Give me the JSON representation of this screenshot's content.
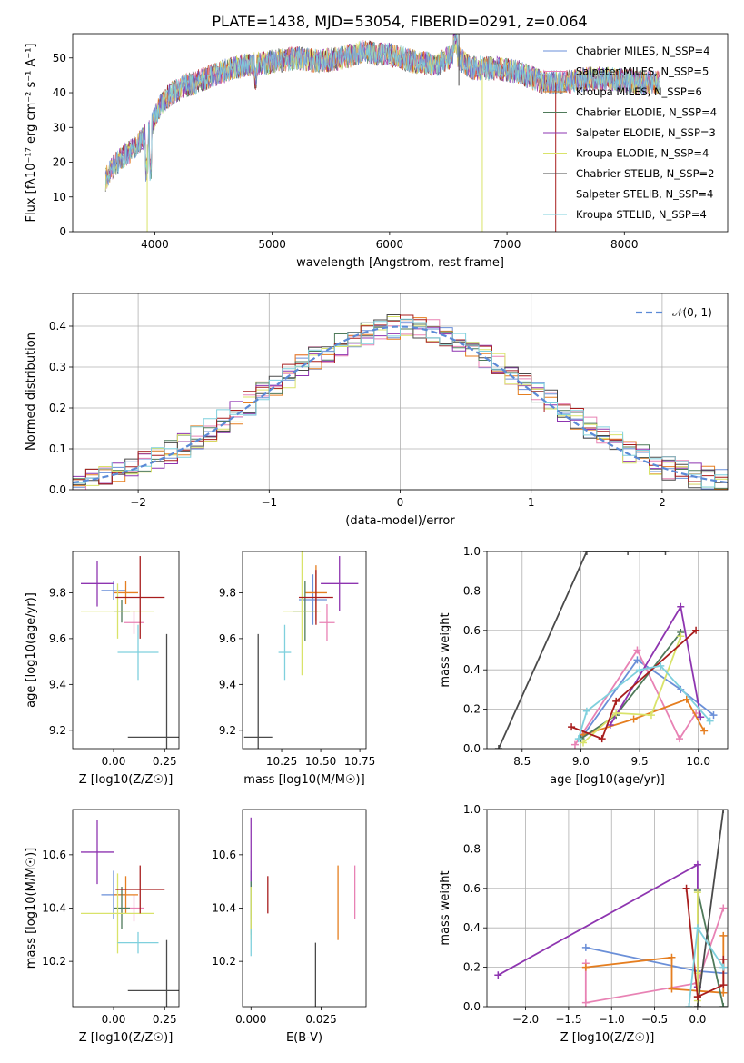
{
  "title": "PLATE=1438, MJD=53054, FIBERID=0291, z=0.064",
  "colors": [
    "#6a8fd8",
    "#e882b4",
    "#e57e20",
    "#4f7a5a",
    "#8e35b0",
    "#d9e36a",
    "#4a4a4a",
    "#a81d1d",
    "#7fd0dd"
  ],
  "chart_data": [
    {
      "type": "line",
      "panel": "spectrum",
      "title": "PLATE=1438, MJD=53054, FIBERID=0291, z=0.064",
      "xlabel": "wavelength [Angstrom, rest frame]",
      "ylabel": "Flux [fλ10⁻¹⁷ erg cm⁻² s⁻¹ A⁻¹]",
      "xlim": [
        3300,
        8880
      ],
      "ylim": [
        0,
        57
      ],
      "xticks": [
        "4000",
        "5000",
        "6000",
        "7000",
        "8000"
      ],
      "yticks": [
        "0",
        "10",
        "20",
        "30",
        "40",
        "50"
      ],
      "grid": false,
      "legend": "top-right",
      "series": [
        {
          "name": "Chabrier MILES, N_SSP=4"
        },
        {
          "name": "Salpeter MILES, N_SSP=5"
        },
        {
          "name": "Kroupa MILES, N_SSP=6"
        },
        {
          "name": "Chabrier ELODIE, N_SSP=4"
        },
        {
          "name": "Salpeter ELODIE, N_SSP=3"
        },
        {
          "name": "Kroupa ELODIE, N_SSP=4"
        },
        {
          "name": "Chabrier STELIB, N_SSP=2"
        },
        {
          "name": "Salpeter STELIB, N_SSP=4"
        },
        {
          "name": "Kroupa STELIB, N_SSP=4"
        }
      ],
      "x": [
        3580,
        3650,
        3750,
        3850,
        3950,
        4050,
        4150,
        4250,
        4350,
        4500,
        4650,
        4800,
        5000,
        5200,
        5400,
        5600,
        5800,
        5900,
        6000,
        6200,
        6400,
        6550,
        6700,
        6900,
        7100,
        7300,
        7500,
        7700,
        7900,
        8100,
        8300
      ],
      "y": [
        15,
        19,
        22,
        25,
        29,
        37,
        40,
        42,
        43,
        45,
        47,
        48,
        49,
        50,
        49,
        50,
        52,
        51,
        51,
        49,
        48,
        51,
        47,
        47,
        46,
        43,
        43,
        44,
        44,
        43,
        43
      ]
    },
    {
      "type": "line",
      "panel": "residual-histogram",
      "xlabel": "(data-model)/error",
      "ylabel": "Normed distribution",
      "xlim": [
        -2.5,
        2.5
      ],
      "ylim": [
        0,
        0.48
      ],
      "xticks": [
        "−2",
        "−1",
        "0",
        "1",
        "2"
      ],
      "yticks": [
        "0.0",
        "0.1",
        "0.2",
        "0.3",
        "0.4"
      ],
      "grid": true,
      "legend": "top-right",
      "gaussian_label": "𝒩(0, 1)",
      "bin_width": 0.1,
      "x": [
        -2.45,
        -2.35,
        -2.25,
        -2.15,
        -2.05,
        -1.95,
        -1.85,
        -1.75,
        -1.65,
        -1.55,
        -1.45,
        -1.35,
        -1.25,
        -1.15,
        -1.05,
        -0.95,
        -0.85,
        -0.75,
        -0.65,
        -0.55,
        -0.45,
        -0.35,
        -0.25,
        -0.15,
        -0.05,
        0.05,
        0.15,
        0.25,
        0.35,
        0.45,
        0.55,
        0.65,
        0.75,
        0.85,
        0.95,
        1.05,
        1.15,
        1.25,
        1.35,
        1.45,
        1.55,
        1.65,
        1.75,
        1.85,
        1.95,
        2.05,
        2.15,
        2.25,
        2.35,
        2.45
      ],
      "y": [
        0.019,
        0.025,
        0.032,
        0.041,
        0.051,
        0.064,
        0.077,
        0.092,
        0.109,
        0.127,
        0.147,
        0.168,
        0.189,
        0.212,
        0.234,
        0.256,
        0.278,
        0.3,
        0.32,
        0.339,
        0.356,
        0.371,
        0.383,
        0.392,
        0.398,
        0.398,
        0.395,
        0.387,
        0.376,
        0.362,
        0.345,
        0.325,
        0.304,
        0.282,
        0.26,
        0.237,
        0.215,
        0.192,
        0.171,
        0.15,
        0.13,
        0.112,
        0.095,
        0.08,
        0.066,
        0.054,
        0.044,
        0.035,
        0.028,
        0.022
      ]
    },
    {
      "type": "scatter",
      "panel": "age-vs-Z",
      "xlabel": "Z [log10(Z/Z☉)]",
      "ylabel": "age [log10(age/yr)]",
      "xlim": [
        -0.2,
        0.32
      ],
      "ylim": [
        9.12,
        9.98
      ],
      "xticks": [
        "0.00",
        "0.25"
      ],
      "yticks": [
        "9.2",
        "9.4",
        "9.6",
        "9.8"
      ],
      "points": [
        {
          "x": 0.0,
          "y": 9.81,
          "xerr": 0.06,
          "yerr": 0.04
        },
        {
          "x": 0.1,
          "y": 9.67,
          "xerr": 0.05,
          "yerr": 0.05
        },
        {
          "x": 0.06,
          "y": 9.8,
          "xerr": 0.06,
          "yerr": 0.05
        },
        {
          "x": 0.04,
          "y": 9.72,
          "xerr": 0.04,
          "yerr": 0.05
        },
        {
          "x": -0.08,
          "y": 9.84,
          "xerr": 0.08,
          "yerr": 0.1
        },
        {
          "x": 0.02,
          "y": 9.72,
          "xerr": 0.18,
          "yerr": 0.12
        },
        {
          "x": 0.26,
          "y": 9.17,
          "xerr": 0.19,
          "yerr": 0.45
        },
        {
          "x": 0.13,
          "y": 9.78,
          "xerr": 0.12,
          "yerr": 0.18
        },
        {
          "x": 0.12,
          "y": 9.54,
          "xerr": 0.1,
          "yerr": 0.12
        }
      ]
    },
    {
      "type": "scatter",
      "panel": "age-vs-mass",
      "xlabel": "mass [log10(M/M☉)]",
      "ylabel": "",
      "xlim": [
        10.0,
        10.79
      ],
      "ylim": [
        9.12,
        9.98
      ],
      "xticks": [
        "10.25",
        "10.50",
        "10.75"
      ],
      "yticks": [
        "9.2",
        "9.4",
        "9.6",
        "9.8"
      ],
      "points": [
        {
          "x": 10.45,
          "y": 9.77,
          "xerr": 0.09,
          "yerr": 0.11
        },
        {
          "x": 10.54,
          "y": 9.67,
          "xerr": 0.05,
          "yerr": 0.08
        },
        {
          "x": 10.47,
          "y": 9.8,
          "xerr": 0.07,
          "yerr": 0.12
        },
        {
          "x": 10.4,
          "y": 9.72,
          "xerr": 0.08,
          "yerr": 0.13
        },
        {
          "x": 10.62,
          "y": 9.84,
          "xerr": 0.12,
          "yerr": 0.12
        },
        {
          "x": 10.38,
          "y": 9.72,
          "xerr": 0.12,
          "yerr": 0.28
        },
        {
          "x": 10.1,
          "y": 9.17,
          "xerr": 0.09,
          "yerr": 0.45
        },
        {
          "x": 10.47,
          "y": 9.78,
          "xerr": 0.11,
          "yerr": 0.12
        },
        {
          "x": 10.27,
          "y": 9.54,
          "xerr": 0.04,
          "yerr": 0.12
        }
      ]
    },
    {
      "type": "line",
      "panel": "weight-vs-age",
      "xlabel": "age [log10(age/yr)]",
      "ylabel": "mass weight",
      "xlim": [
        8.2,
        10.25
      ],
      "ylim": [
        0,
        1
      ],
      "xticks": [
        "8.5",
        "9.0",
        "9.5",
        "10.0"
      ],
      "yticks": [
        "0.0",
        "0.2",
        "0.4",
        "0.6",
        "0.8",
        "1.0"
      ],
      "grid": true,
      "series": [
        {
          "x": [
            9.0,
            9.48,
            9.85,
            10.13
          ],
          "y": [
            0.05,
            0.45,
            0.3,
            0.17
          ]
        },
        {
          "x": [
            8.95,
            9.48,
            9.84,
            9.98
          ],
          "y": [
            0.02,
            0.5,
            0.05,
            0.18
          ]
        },
        {
          "x": [
            9.02,
            9.45,
            9.9,
            10.05
          ],
          "y": [
            0.07,
            0.15,
            0.25,
            0.09
          ]
        },
        {
          "x": [
            9.0,
            9.3,
            9.85
          ],
          "y": [
            0.05,
            0.17,
            0.59
          ]
        },
        {
          "x": [
            9.25,
            9.85,
            10.02
          ],
          "y": [
            0.12,
            0.72,
            0.16
          ]
        },
        {
          "x": [
            9.02,
            9.3,
            9.6,
            9.85
          ],
          "y": [
            0.03,
            0.18,
            0.17,
            0.57
          ]
        },
        {
          "x": [
            8.3,
            9.05,
            9.4,
            9.72
          ],
          "y": [
            0.0,
            1.0,
            1.0,
            1.0
          ]
        },
        {
          "x": [
            8.92,
            9.18,
            9.3,
            9.98
          ],
          "y": [
            0.11,
            0.05,
            0.24,
            0.6
          ]
        },
        {
          "x": [
            8.98,
            9.05,
            9.5,
            9.68,
            10.1
          ],
          "y": [
            0.05,
            0.19,
            0.4,
            0.42,
            0.14
          ]
        }
      ]
    },
    {
      "type": "scatter",
      "panel": "mass-vs-Z",
      "xlabel": "Z [log10(Z/Z☉)]",
      "ylabel": "mass [log10(M/M☉)]",
      "xlim": [
        -0.2,
        0.32
      ],
      "ylim": [
        10.03,
        10.77
      ],
      "xticks": [
        "0.00",
        "0.25"
      ],
      "yticks": [
        "10.2",
        "10.4",
        "10.6"
      ],
      "points": [
        {
          "x": 0.0,
          "y": 10.45,
          "xerr": 0.06,
          "yerr": 0.09
        },
        {
          "x": 0.1,
          "y": 10.4,
          "xerr": 0.05,
          "yerr": 0.05
        },
        {
          "x": 0.06,
          "y": 10.45,
          "xerr": 0.06,
          "yerr": 0.07
        },
        {
          "x": 0.04,
          "y": 10.4,
          "xerr": 0.04,
          "yerr": 0.08
        },
        {
          "x": -0.08,
          "y": 10.61,
          "xerr": 0.08,
          "yerr": 0.12
        },
        {
          "x": 0.02,
          "y": 10.38,
          "xerr": 0.18,
          "yerr": 0.15
        },
        {
          "x": 0.26,
          "y": 10.09,
          "xerr": 0.19,
          "yerr": 0.19
        },
        {
          "x": 0.13,
          "y": 10.47,
          "xerr": 0.12,
          "yerr": 0.09
        },
        {
          "x": 0.12,
          "y": 10.27,
          "xerr": 0.1,
          "yerr": 0.04
        }
      ]
    },
    {
      "type": "scatter",
      "panel": "mass-vs-EBV",
      "xlabel": "E(B-V)",
      "ylabel": "",
      "xlim": [
        -0.003,
        0.041
      ],
      "ylim": [
        10.03,
        10.77
      ],
      "xticks": [
        "0.000",
        "0.025"
      ],
      "yticks": [
        "10.2",
        "10.4",
        "10.6"
      ],
      "points": [
        {
          "x": 0.0,
          "y": 10.45,
          "yerr": 0.09
        },
        {
          "x": 0.037,
          "y": 10.46,
          "yerr": 0.1
        },
        {
          "x": 0.031,
          "y": 10.42,
          "yerr": 0.14
        },
        {
          "x": 0.0,
          "y": 10.4,
          "yerr": 0.1
        },
        {
          "x": 0.0,
          "y": 10.62,
          "yerr": 0.12
        },
        {
          "x": 0.0,
          "y": 10.38,
          "yerr": 0.1
        },
        {
          "x": 0.023,
          "y": 10.14,
          "yerr": 0.13
        },
        {
          "x": 0.006,
          "y": 10.45,
          "yerr": 0.07
        },
        {
          "x": 0.0,
          "y": 10.27,
          "yerr": 0.05
        }
      ]
    },
    {
      "type": "line",
      "panel": "weight-vs-Z",
      "xlabel": "Z [log10(Z/Z☉)]",
      "ylabel": "mass weight",
      "xlim": [
        -2.45,
        0.35
      ],
      "ylim": [
        0,
        1
      ],
      "xticks": [
        "−2.0",
        "−1.5",
        "−1.0",
        "−0.5",
        "0.0"
      ],
      "yticks": [
        "0.0",
        "0.2",
        "0.4",
        "0.6",
        "0.8",
        "1.0"
      ],
      "grid": true,
      "series": [
        {
          "x": [
            -1.3,
            0.0,
            0.3
          ],
          "y": [
            0.3,
            0.18,
            0.17
          ]
        },
        {
          "x": [
            -1.3,
            -1.3,
            0.0,
            0.3
          ],
          "y": [
            0.22,
            0.02,
            0.12,
            0.5
          ]
        },
        {
          "x": [
            -1.3,
            -0.3,
            -0.3,
            0.3,
            0.3
          ],
          "y": [
            0.2,
            0.25,
            0.09,
            0.07,
            0.36
          ]
        },
        {
          "x": [
            0.0,
            0.0,
            0.3
          ],
          "y": [
            0.05,
            0.59,
            0.0
          ]
        },
        {
          "x": [
            -2.32,
            0.0,
            0.0
          ],
          "y": [
            0.16,
            0.72,
            0.1
          ]
        },
        {
          "x": [
            0.0,
            0.0,
            0.0
          ],
          "y": [
            0.58,
            0.17,
            0.03
          ]
        },
        {
          "x": [
            0.0,
            0.3
          ],
          "y": [
            0.0,
            1.0
          ]
        },
        {
          "x": [
            -0.13,
            0.0,
            0.3,
            0.3
          ],
          "y": [
            0.6,
            0.05,
            0.11,
            0.24
          ]
        },
        {
          "x": [
            -0.1,
            0.0,
            0.3
          ],
          "y": [
            0.0,
            0.4,
            0.2
          ]
        }
      ]
    }
  ]
}
